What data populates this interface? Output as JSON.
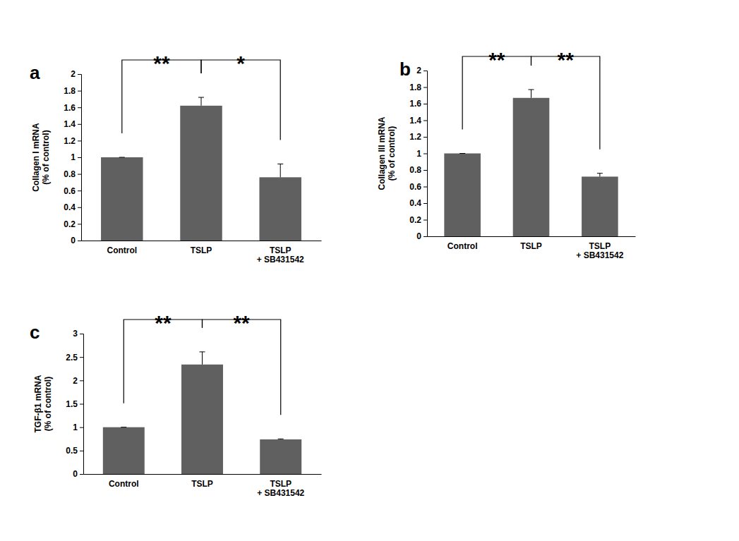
{
  "chart_data": [
    {
      "type": "bar",
      "title": "a",
      "y_label": [
        "Collagen I mRNA",
        "(% of control)"
      ],
      "categories": [
        "Control",
        "TSLP",
        "TSLP + SB431542"
      ],
      "values": [
        1.0,
        1.62,
        0.76
      ],
      "errors": [
        0,
        0.1,
        0.16
      ],
      "color": "#606060",
      "ylim": [
        0,
        2
      ],
      "yticks": [
        0,
        0.2,
        0.4,
        0.6,
        0.8,
        1,
        1.2,
        1.4,
        1.6,
        1.8,
        2
      ],
      "grid": false,
      "annotations": [
        {
          "text": "**",
          "between": [
            "Control",
            "TSLP"
          ]
        },
        {
          "text": "*",
          "between": [
            "TSLP",
            "TSLP + SB431542"
          ]
        }
      ]
    },
    {
      "type": "bar",
      "title": "b",
      "y_label": [
        "Collagen III mRNA",
        "(% of control)"
      ],
      "categories": [
        "Control",
        "TSLP",
        "TSLP + SB431542"
      ],
      "values": [
        1.0,
        1.67,
        0.72
      ],
      "errors": [
        0,
        0.1,
        0.04
      ],
      "color": "#606060",
      "ylim": [
        0,
        2
      ],
      "yticks": [
        0,
        0.2,
        0.4,
        0.6,
        0.8,
        1,
        1.2,
        1.4,
        1.6,
        1.8,
        2
      ],
      "grid": false,
      "annotations": [
        {
          "text": "**",
          "between": [
            "Control",
            "TSLP"
          ]
        },
        {
          "text": "**",
          "between": [
            "TSLP",
            "TSLP + SB431542"
          ]
        }
      ]
    },
    {
      "type": "bar",
      "title": "c",
      "y_label": [
        "TGF-β1 mRNA",
        "(% of control)"
      ],
      "categories": [
        "Control",
        "TSLP",
        "TSLP + SB431542"
      ],
      "values": [
        1.0,
        2.34,
        0.74
      ],
      "errors": [
        0,
        0.27,
        0.01
      ],
      "color": "#606060",
      "ylim": [
        0,
        3
      ],
      "yticks": [
        0,
        0.5,
        1,
        1.5,
        2,
        2.5,
        3
      ],
      "grid": false,
      "annotations": [
        {
          "text": "**",
          "between": [
            "Control",
            "TSLP"
          ]
        },
        {
          "text": "**",
          "between": [
            "TSLP",
            "TSLP + SB431542"
          ]
        }
      ]
    }
  ]
}
